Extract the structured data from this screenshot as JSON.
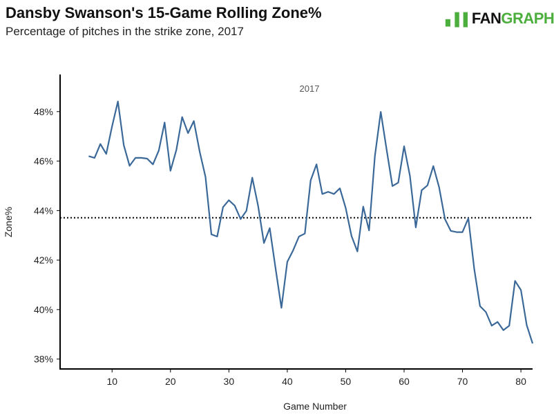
{
  "title": "Dansby Swanson's 15-Game Rolling Zone%",
  "subtitle": "Percentage of pitches in the strike zone, 2017",
  "logo": {
    "text_a": "FAN",
    "text_b": "GRAPHS",
    "colors": {
      "dark": "#111111",
      "green": "#4cae3c"
    }
  },
  "chart_data": {
    "type": "line",
    "xlabel": "Game Number",
    "ylabel": "Zone%",
    "annotation": "2017",
    "xlim": [
      1.1,
      82
    ],
    "ylim": [
      37.6,
      49.5
    ],
    "xticks": [
      10,
      20,
      30,
      40,
      50,
      60,
      70,
      80
    ],
    "yticks": [
      38,
      40,
      42,
      44,
      46,
      48
    ],
    "ytick_labels": [
      "38%",
      "40%",
      "42%",
      "44%",
      "46%",
      "48%"
    ],
    "grid": false,
    "reference_line": {
      "value": 43.71,
      "style": "dotted",
      "color": "#000000"
    },
    "series_color": "#3a6898",
    "x": [
      6,
      7,
      8,
      9,
      10,
      11,
      12,
      13,
      14,
      15,
      16,
      17,
      18,
      19,
      20,
      21,
      22,
      23,
      24,
      25,
      26,
      27,
      28,
      29,
      30,
      31,
      32,
      33,
      34,
      35,
      36,
      37,
      38,
      39,
      40,
      41,
      42,
      43,
      44,
      45,
      46,
      47,
      48,
      49,
      50,
      51,
      52,
      53,
      54,
      55,
      56,
      57,
      58,
      59,
      60,
      61,
      62,
      63,
      64,
      65,
      66,
      67,
      68,
      69,
      70,
      71,
      72,
      73,
      74,
      75,
      76,
      77,
      78,
      79,
      80,
      81,
      82
    ],
    "y": [
      46.2,
      46.13,
      46.69,
      46.29,
      47.4,
      48.41,
      46.64,
      45.81,
      46.13,
      46.13,
      46.1,
      45.87,
      46.43,
      47.56,
      45.61,
      46.45,
      47.78,
      47.13,
      47.62,
      46.38,
      45.36,
      43.04,
      42.95,
      44.14,
      44.42,
      44.2,
      43.66,
      43.99,
      45.33,
      44.2,
      42.69,
      43.29,
      41.65,
      40.07,
      41.93,
      42.39,
      42.95,
      43.07,
      45.22,
      45.87,
      44.67,
      44.76,
      44.67,
      44.9,
      44.11,
      42.97,
      42.35,
      44.16,
      43.2,
      46.2,
      47.99,
      46.48,
      44.99,
      45.13,
      46.6,
      45.41,
      43.32,
      44.82,
      45.02,
      45.8,
      44.94,
      43.65,
      43.18,
      43.13,
      43.13,
      43.69,
      41.65,
      40.14,
      39.9,
      39.35,
      39.5,
      39.17,
      39.35,
      41.16,
      40.79,
      39.37,
      38.63
    ]
  }
}
